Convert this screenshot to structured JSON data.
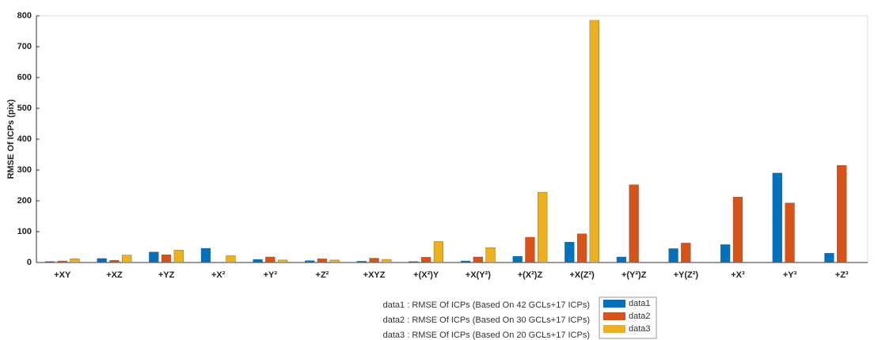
{
  "chart_data": {
    "type": "bar",
    "y_label": "RMSE Of ICPs (pix)",
    "categories": [
      "+XY",
      "+XZ",
      "+YZ",
      "+X²",
      "+Y²",
      "+Z²",
      "+XYZ",
      "+(X²)Y",
      "+X(Y²)",
      "+(X²)Z",
      "+X(Z²)",
      "+(Y²)Z",
      "+Y(Z²)",
      "+X³",
      "+Y³",
      "+Z³"
    ],
    "series": [
      {
        "name": "data1",
        "color": "#0072bd",
        "values": [
          3,
          13,
          34,
          46,
          10,
          6,
          4,
          3,
          5,
          20,
          66,
          18,
          45,
          58,
          290,
          30
        ]
      },
      {
        "name": "data2",
        "color": "#d95319",
        "values": [
          5,
          7,
          25,
          0,
          18,
          12,
          14,
          17,
          18,
          82,
          93,
          252,
          63,
          212,
          193,
          315
        ]
      },
      {
        "name": "data3",
        "color": "#edb120",
        "values": [
          12,
          24,
          40,
          22,
          8,
          8,
          10,
          68,
          48,
          228,
          785,
          0,
          0,
          0,
          0,
          0
        ]
      }
    ],
    "ylim": [
      0,
      800
    ],
    "yticks": [
      0,
      100,
      200,
      300,
      400,
      500,
      600,
      700,
      800
    ],
    "annotations": [
      "data1 : RMSE Of ICPs (Based On 42 GCLs+17 ICPs)",
      "data2 : RMSE Of ICPs (Based On 30 GCLs+17 ICPs)",
      "data3 : RMSE Of ICPs (Based On 20 GCLs+17 ICPs)"
    ]
  }
}
